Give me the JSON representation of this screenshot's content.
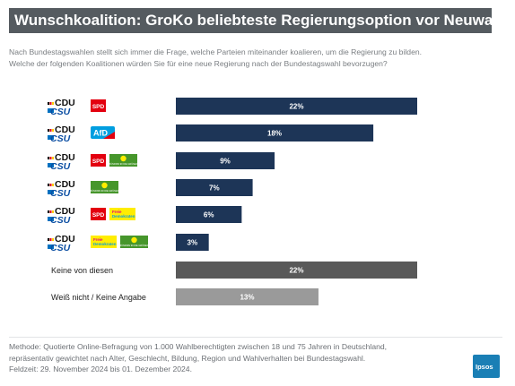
{
  "header": {
    "title": "Wunschkoalition: GroKo beliebteste Regierungsoption vor Neuwahl",
    "subtitle_line1": "Nach Bundestagswahlen stellt sich immer die Frage, welche Parteien miteinander koalieren, um die Regierung zu bilden.",
    "subtitle_line2": "Welche der folgenden Koalitionen würden Sie für eine neue Regierung nach der Bundestagswahl bevorzugen?"
  },
  "logos": {
    "cdu": "CDU",
    "csu": "CSU",
    "spd": "SPD",
    "afd": "AfD",
    "gruene": "BÜNDNIS 90 DIE GRÜNEN",
    "fdp_line1": "Freie",
    "fdp_line2": "Demokraten"
  },
  "colors": {
    "navy": "#1d3557",
    "dark_gray": "#595959",
    "light_gray": "#9a9a9a",
    "spd_red": "#e3000f",
    "afd_blue": "#009ee0",
    "gruene_green": "#46962b",
    "fdp_yellow": "#ffed00"
  },
  "chart_data": {
    "type": "bar",
    "orientation": "horizontal",
    "categories": [
      {
        "parties": [
          "CDU/CSU",
          "SPD"
        ],
        "value": 22,
        "label": "22%",
        "color": "#1d3557"
      },
      {
        "parties": [
          "CDU/CSU",
          "AfD"
        ],
        "value": 18,
        "label": "18%",
        "color": "#1d3557"
      },
      {
        "parties": [
          "CDU/CSU",
          "SPD",
          "Grüne"
        ],
        "value": 9,
        "label": "9%",
        "color": "#1d3557"
      },
      {
        "parties": [
          "CDU/CSU",
          "Grüne"
        ],
        "value": 7,
        "label": "7%",
        "color": "#1d3557"
      },
      {
        "parties": [
          "CDU/CSU",
          "SPD",
          "FDP"
        ],
        "value": 6,
        "label": "6%",
        "color": "#1d3557"
      },
      {
        "parties": [
          "CDU/CSU",
          "FDP",
          "Grüne"
        ],
        "value": 3,
        "label": "3%",
        "color": "#1d3557"
      },
      {
        "text": "Keine von diesen",
        "value": 22,
        "label": "22%",
        "color": "#595959"
      },
      {
        "text": "Weiß nicht / Keine Angabe",
        "value": 13,
        "label": "13%",
        "color": "#9a9a9a"
      }
    ],
    "xlim": [
      0,
      22
    ]
  },
  "footer": {
    "line1": "Methode: Quotierte Online-Befragung von 1.000 Wahlberechtigten zwischen 18 und 75 Jahren in Deutschland,",
    "line2": "repräsentativ gewichtet nach Alter, Geschlecht, Bildung, Region und Wahlverhalten bei Bundestagswahl.",
    "line3": "Feldzeit: 29. November 2024 bis 01. Dezember 2024."
  },
  "brand": {
    "name": "Ipsos"
  }
}
